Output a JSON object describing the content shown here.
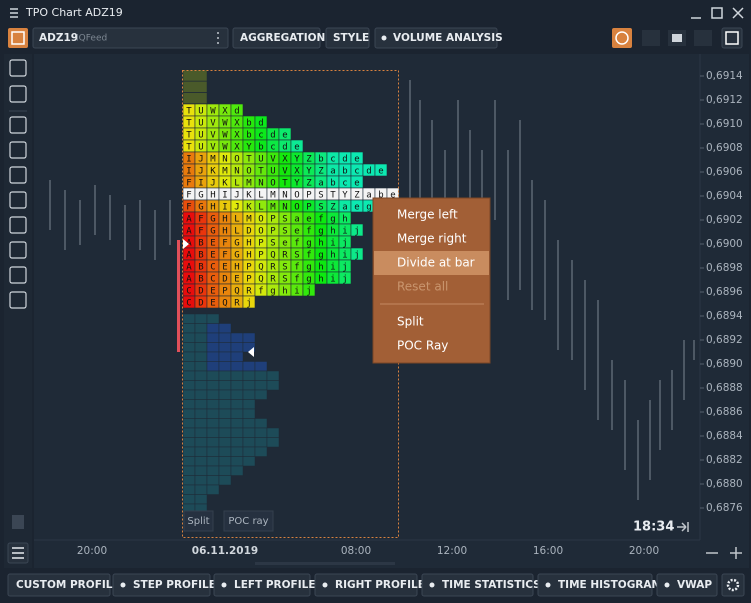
{
  "window": {
    "title": "TPO Chart ADZ19"
  },
  "toolbar": {
    "symbol": "ADZ19",
    "feed": "IQFeed",
    "buttons": [
      "AGGREGATION",
      "STYLE",
      "VOLUME ANALYSIS"
    ]
  },
  "profile": {
    "rows": [
      "TUWXd",
      "TUVWXbd",
      "TUVWXbcde",
      "TUVWXYbcde",
      "IJMNOTUVXYZbcde",
      "IJKMNOTUVXYZabcde",
      "FIJKLMNOTYZabce",
      "FGHIJKLMNOPSTYZabe",
      "FGHIJKLMNOPSZaeg",
      "AFGHLMOPSaefgh",
      "AFGHLDOPSefghij",
      "ABEFGHPSefghij",
      "ABEFGHPQRSfghij",
      "ABCEHPQRSfghij",
      "ABCDEPQRSfghij",
      "CDEPQRfghij",
      "CDEQRj"
    ],
    "buttons": [
      "Split",
      "POC ray"
    ]
  },
  "context_menu": {
    "items": [
      "Merge left",
      "Merge right",
      "Divide at bar",
      "Reset all",
      "Split",
      "POC Ray"
    ]
  },
  "price_axis": {
    "labels": [
      "0,6914",
      "0,6912",
      "0,6910",
      "0,6908",
      "0,6906",
      "0,6904",
      "0,6902",
      "0,6900",
      "0,6898",
      "0,6896",
      "0,6894",
      "0,6892",
      "0,6890",
      "0,6888",
      "0,6886",
      "0,6884",
      "0,6882",
      "0,6880",
      "0,6876"
    ]
  },
  "time_axis": {
    "labels": [
      "20:00",
      "06.11.2019",
      "08:00",
      "12:00",
      "16:00",
      "20:00"
    ]
  },
  "clock": "18:34",
  "bottom_bar": {
    "buttons": [
      "CUSTOM PROFILE",
      "STEP PROFILE",
      "LEFT PROFILE",
      "RIGHT PROFILE",
      "TIME STATISTICS",
      "TIME HISTOGRAM",
      "VWAP"
    ]
  }
}
